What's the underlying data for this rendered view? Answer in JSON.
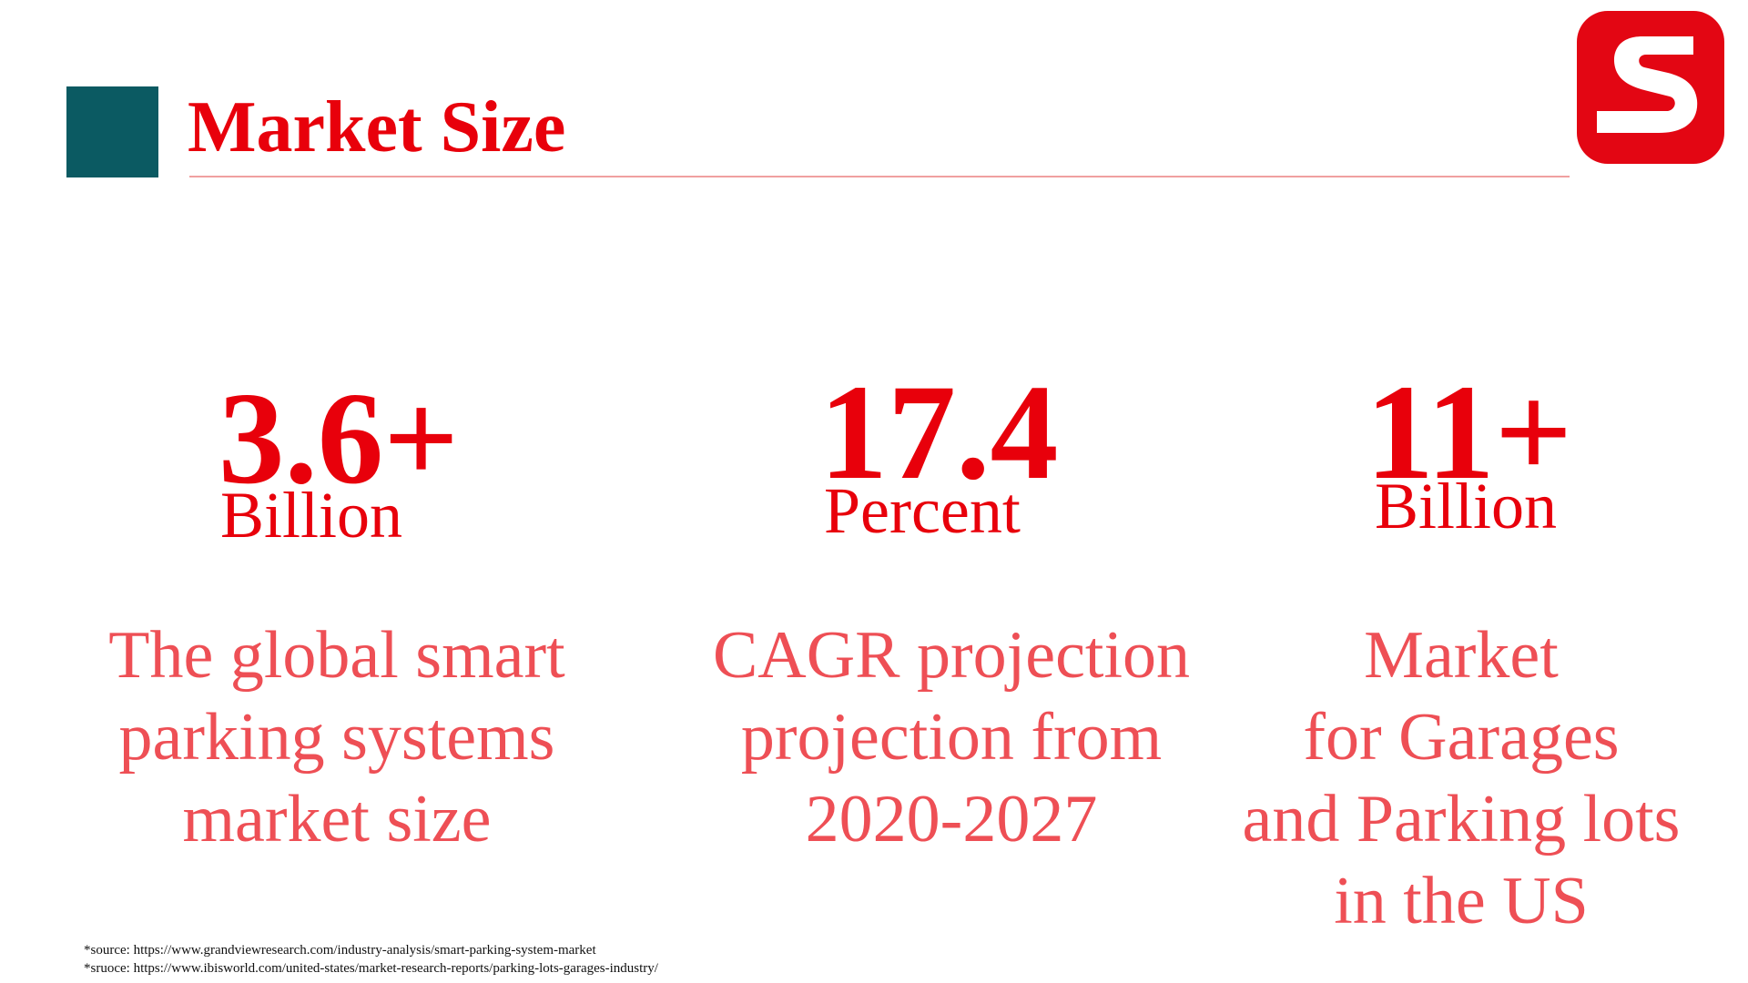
{
  "slide": {
    "title": "Market Size",
    "colors": {
      "accent_square": "#0b5a62",
      "title": "#e8000b",
      "description": "#ee4f55",
      "logo": "#e30613"
    },
    "logo_icon": "s-logo-icon"
  },
  "stats": [
    {
      "number": "3.6+",
      "unit": "Billion",
      "description": [
        "The global smart",
        "parking systems",
        "market size"
      ]
    },
    {
      "number": "17.4",
      "unit": "Percent",
      "description": [
        "CAGR projection",
        "projection from",
        "2020-2027"
      ]
    },
    {
      "number": "11+",
      "unit": "Billion",
      "description": [
        "Market",
        "for Garages",
        "and Parking lots",
        "in the US"
      ]
    }
  ],
  "sources": [
    "*source: https://www.grandviewresearch.com/industry-analysis/smart-parking-system-market",
    "*sruoce: https://www.ibisworld.com/united-states/market-research-reports/parking-lots-garages-industry/"
  ]
}
